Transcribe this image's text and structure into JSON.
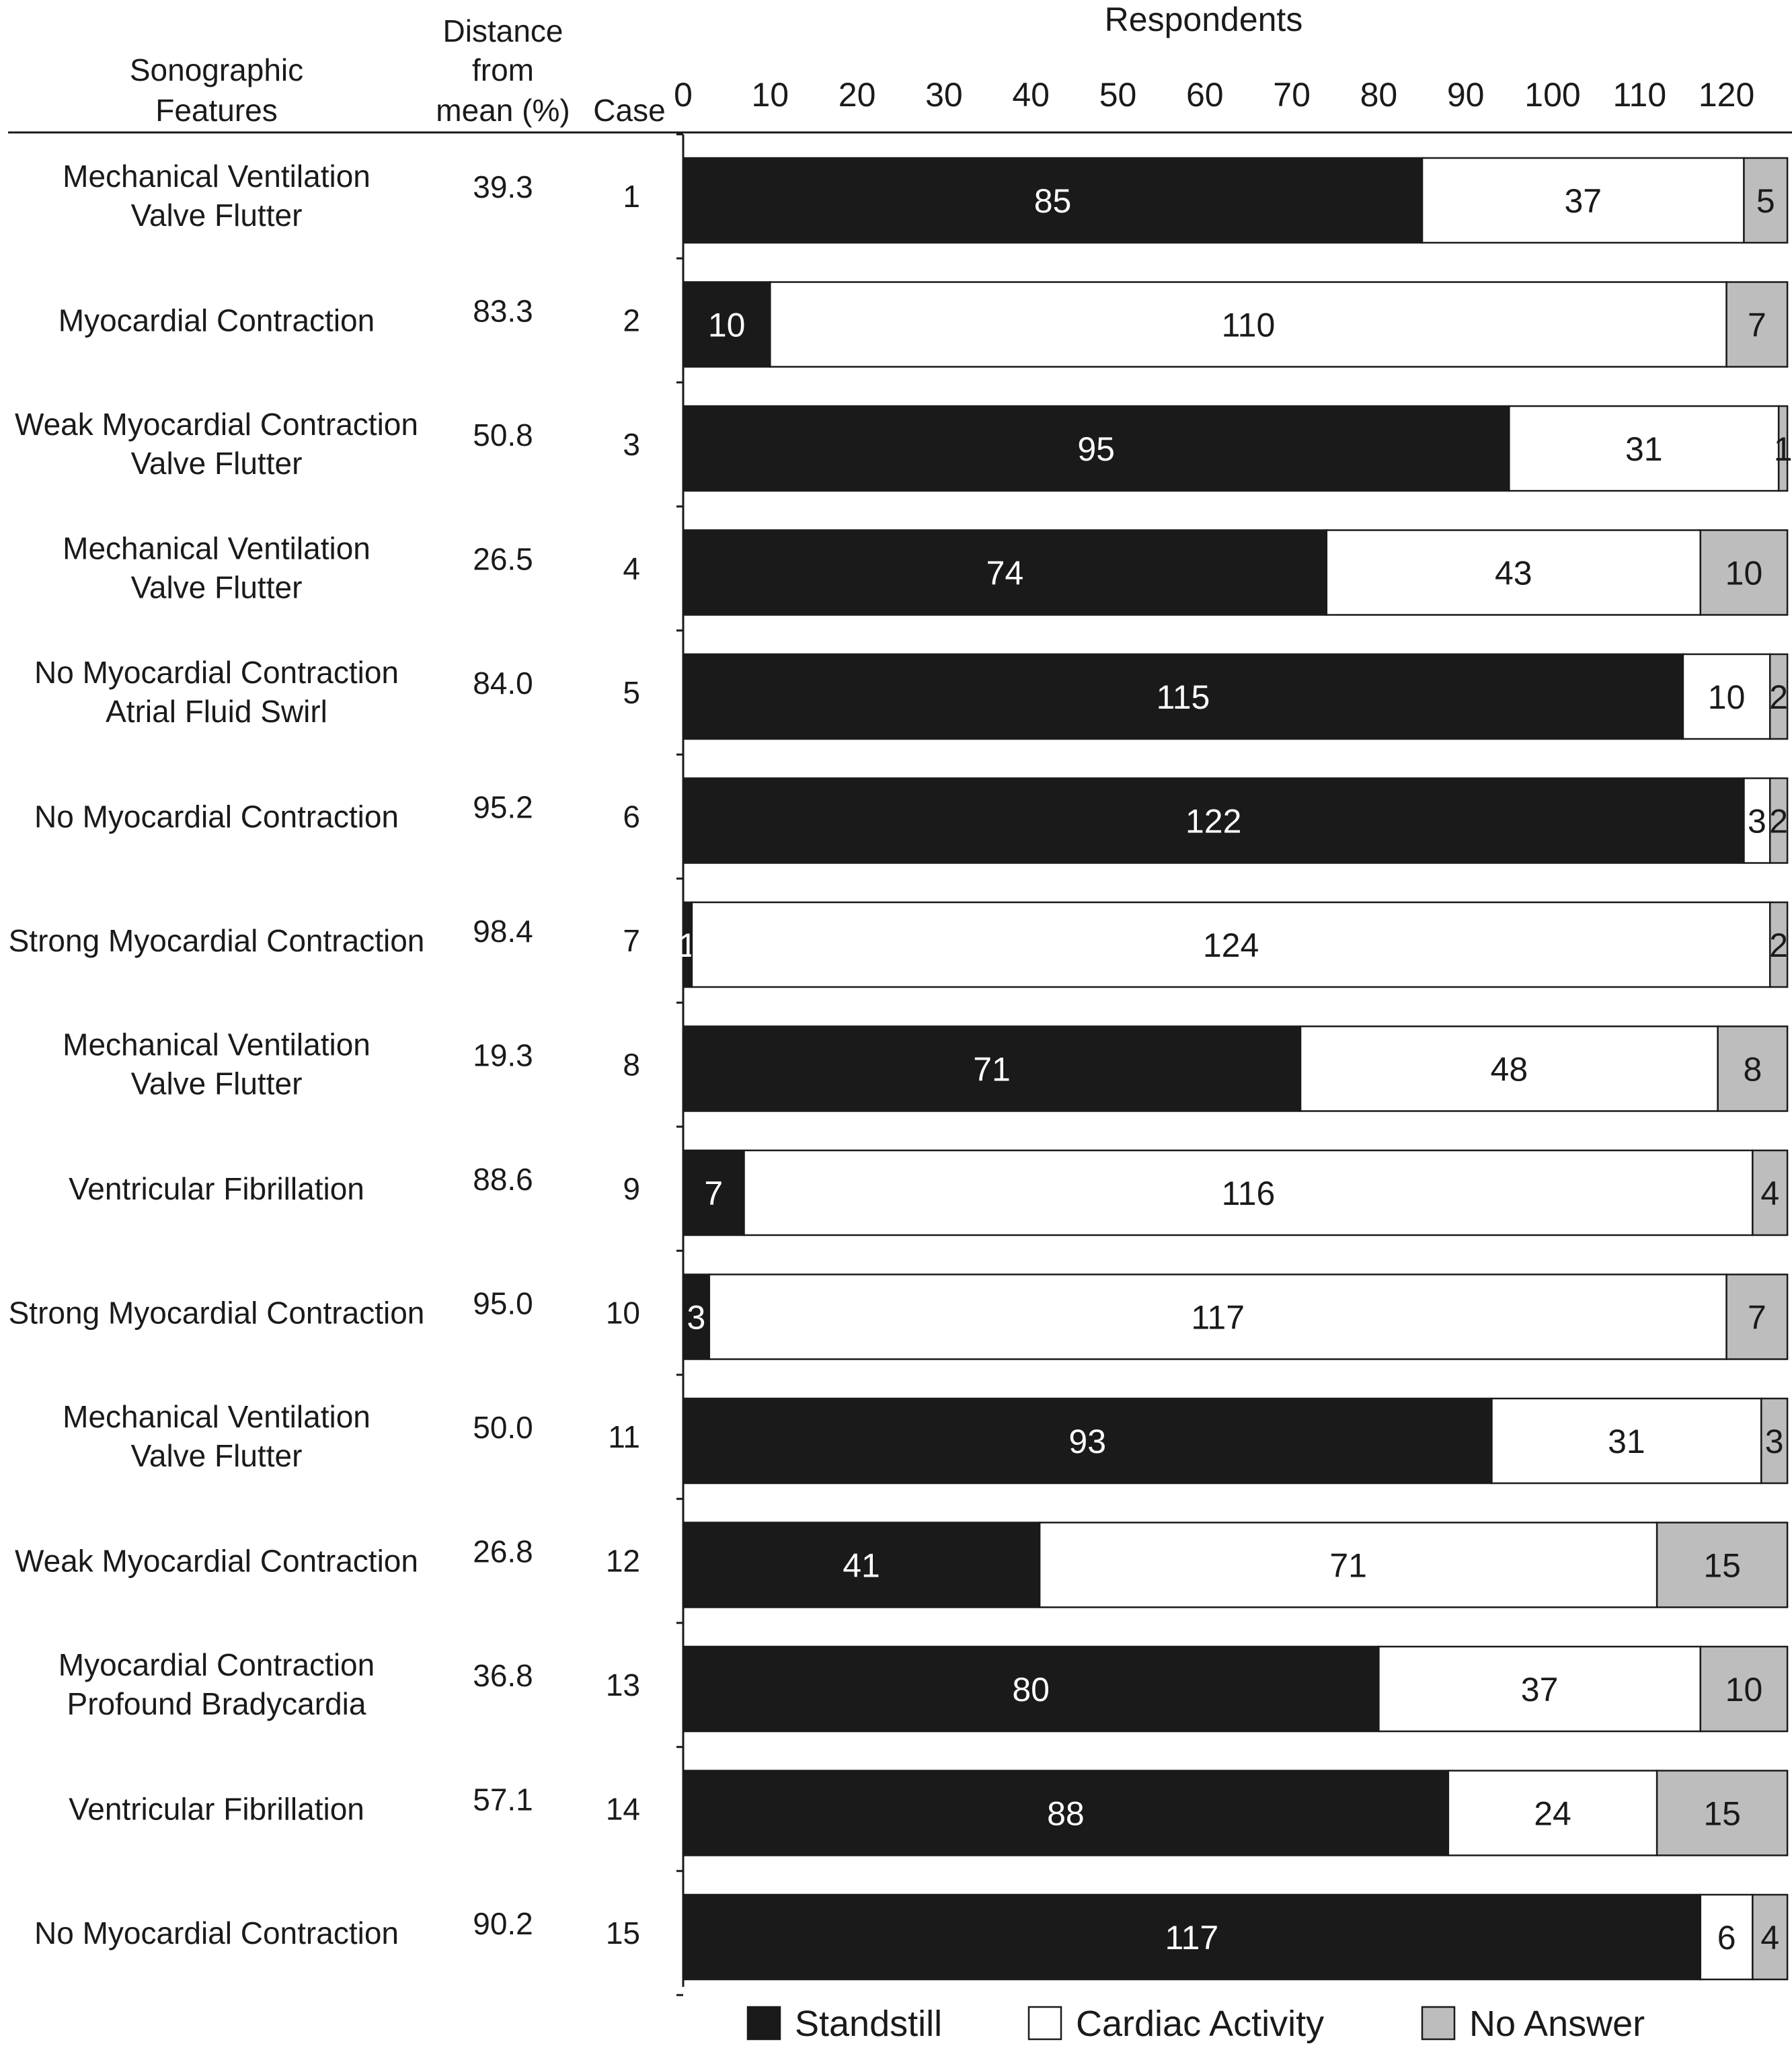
{
  "chart_data": {
    "type": "bar",
    "orientation": "horizontal",
    "stacked": true,
    "xlabel": "Respondents",
    "xticks": [
      0,
      10,
      20,
      30,
      40,
      50,
      60,
      70,
      80,
      90,
      100,
      110,
      120
    ],
    "xlim": [
      0,
      127
    ],
    "columns": {
      "features": "Sonographic Features",
      "distance": "Distance from mean (%)",
      "case": "Case"
    },
    "rows": [
      {
        "features": [
          "Mechanical Ventilation",
          "Valve Flutter"
        ],
        "distance": "39.3",
        "case": "1"
      },
      {
        "features": [
          "Myocardial Contraction"
        ],
        "distance": "83.3",
        "case": "2"
      },
      {
        "features": [
          "Weak Myocardial Contraction",
          "Valve Flutter"
        ],
        "distance": "50.8",
        "case": "3"
      },
      {
        "features": [
          "Mechanical Ventilation",
          "Valve Flutter"
        ],
        "distance": "26.5",
        "case": "4"
      },
      {
        "features": [
          "No Myocardial Contraction",
          "Atrial Fluid Swirl"
        ],
        "distance": "84.0",
        "case": "5"
      },
      {
        "features": [
          "No Myocardial Contraction"
        ],
        "distance": "95.2",
        "case": "6"
      },
      {
        "features": [
          "Strong Myocardial Contraction"
        ],
        "distance": "98.4",
        "case": "7"
      },
      {
        "features": [
          "Mechanical Ventilation",
          "Valve Flutter"
        ],
        "distance": "19.3",
        "case": "8"
      },
      {
        "features": [
          "Ventricular Fibrillation"
        ],
        "distance": "88.6",
        "case": "9"
      },
      {
        "features": [
          "Strong Myocardial Contraction"
        ],
        "distance": "95.0",
        "case": "10"
      },
      {
        "features": [
          "Mechanical Ventilation",
          "Valve Flutter"
        ],
        "distance": "50.0",
        "case": "11"
      },
      {
        "features": [
          "Weak Myocardial Contraction"
        ],
        "distance": "26.8",
        "case": "12"
      },
      {
        "features": [
          "Myocardial Contraction",
          "Profound Bradycardia"
        ],
        "distance": "36.8",
        "case": "13"
      },
      {
        "features": [
          "Ventricular Fibrillation"
        ],
        "distance": "57.1",
        "case": "14"
      },
      {
        "features": [
          "No Myocardial Contraction"
        ],
        "distance": "90.2",
        "case": "15"
      }
    ],
    "series": [
      {
        "name": "Standstill",
        "color": "#1a1a1a",
        "label_color": "#ffffff",
        "values": [
          85,
          10,
          95,
          74,
          115,
          122,
          1,
          71,
          7,
          3,
          93,
          41,
          80,
          88,
          117
        ]
      },
      {
        "name": "Cardiac Activity",
        "color": "#ffffff",
        "label_color": "#1a1a1a",
        "values": [
          37,
          110,
          31,
          43,
          10,
          3,
          124,
          48,
          116,
          117,
          31,
          71,
          37,
          24,
          6
        ]
      },
      {
        "name": "No Answer",
        "color": "#bdbdbd",
        "label_color": "#1a1a1a",
        "values": [
          5,
          7,
          1,
          10,
          2,
          2,
          2,
          8,
          4,
          7,
          3,
          15,
          10,
          15,
          4
        ]
      }
    ],
    "legend_position": "bottom"
  }
}
